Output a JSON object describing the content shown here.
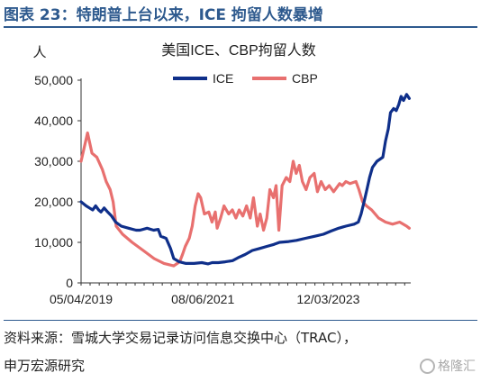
{
  "figure": {
    "title": "图表 23：特朗普上台以来，ICE 拘留人数暴增",
    "source": "资料来源：雪城大学交易记录访问信息交换中心（TRAC），",
    "publisher": "申万宏源研究",
    "watermark": "格隆汇"
  },
  "colors": {
    "ICE": "#0f2f8a",
    "CBP": "#e8706f",
    "title": "#2e5a8e"
  },
  "chart_data": {
    "type": "line",
    "title": "美国ICE、CBP拘留人数",
    "ylabel": "人",
    "ylim": [
      0,
      50000
    ],
    "yticks": [
      {
        "value": 0,
        "label": "0"
      },
      {
        "value": 10000,
        "label": "10,000"
      },
      {
        "value": 20000,
        "label": "20,000"
      },
      {
        "value": 30000,
        "label": "30,000"
      },
      {
        "value": 40000,
        "label": "40,000"
      },
      {
        "value": 50000,
        "label": "50,000"
      }
    ],
    "xlim": [
      "2019-05-04",
      "2025-06-14"
    ],
    "xticks": [
      {
        "value": "2019-05-04",
        "label": "05/04/2019"
      },
      {
        "value": "2021-08-06",
        "label": "08/06/2021"
      },
      {
        "value": "2023-12-03",
        "label": "12/03/2023"
      }
    ],
    "legend_position": "top-center",
    "series": [
      {
        "name": "ICE",
        "color": "#0f2f8a",
        "points": [
          [
            "2019-05-04",
            20000
          ],
          [
            "2019-06-07",
            19000
          ],
          [
            "2019-06-30",
            18500
          ],
          [
            "2019-07-22",
            18000
          ],
          [
            "2019-08-11",
            19000
          ],
          [
            "2019-08-31",
            18000
          ],
          [
            "2019-09-16",
            17500
          ],
          [
            "2019-10-07",
            18500
          ],
          [
            "2019-10-31",
            17500
          ],
          [
            "2019-11-27",
            16500
          ],
          [
            "2019-12-24",
            15000
          ],
          [
            "2020-01-31",
            14000
          ],
          [
            "2020-03-21",
            13500
          ],
          [
            "2020-05-11",
            13000
          ],
          [
            "2020-06-06",
            13000
          ],
          [
            "2020-07-24",
            13500
          ],
          [
            "2020-09-07",
            13000
          ],
          [
            "2020-10-08",
            13200
          ],
          [
            "2020-10-25",
            11500
          ],
          [
            "2020-11-30",
            11000
          ],
          [
            "2020-12-30",
            8500
          ],
          [
            "2021-01-21",
            6000
          ],
          [
            "2021-02-27",
            5200
          ],
          [
            "2021-04-13",
            4800
          ],
          [
            "2021-06-07",
            4800
          ],
          [
            "2021-07-30",
            5000
          ],
          [
            "2021-09-11",
            4700
          ],
          [
            "2021-10-08",
            5000
          ],
          [
            "2021-11-18",
            5000
          ],
          [
            "2022-01-05",
            5200
          ],
          [
            "2022-02-23",
            5500
          ],
          [
            "2022-04-01",
            6200
          ],
          [
            "2022-05-19",
            7000
          ],
          [
            "2022-07-07",
            8000
          ],
          [
            "2022-08-25",
            8500
          ],
          [
            "2022-10-13",
            9000
          ],
          [
            "2022-11-30",
            9500
          ],
          [
            "2023-01-07",
            10000
          ],
          [
            "2023-03-10",
            10200
          ],
          [
            "2023-05-02",
            10500
          ],
          [
            "2023-07-02",
            11000
          ],
          [
            "2023-09-01",
            11500
          ],
          [
            "2023-10-31",
            12000
          ],
          [
            "2023-12-23",
            12800
          ],
          [
            "2024-02-12",
            13500
          ],
          [
            "2024-04-01",
            14000
          ],
          [
            "2024-05-27",
            14500
          ],
          [
            "2024-06-24",
            15000
          ],
          [
            "2024-07-13",
            17000
          ],
          [
            "2024-08-02",
            20000
          ],
          [
            "2024-08-21",
            23000
          ],
          [
            "2024-09-08",
            26000
          ],
          [
            "2024-09-28",
            28500
          ],
          [
            "2024-10-28",
            30000
          ],
          [
            "2024-12-07",
            31000
          ],
          [
            "2024-12-25",
            35000
          ],
          [
            "2025-01-13",
            38000
          ],
          [
            "2025-01-28",
            42000
          ],
          [
            "2025-02-18",
            43000
          ],
          [
            "2025-03-08",
            42500
          ],
          [
            "2025-03-25",
            44000
          ],
          [
            "2025-04-10",
            46000
          ],
          [
            "2025-04-26",
            45000
          ],
          [
            "2025-05-17",
            46500
          ],
          [
            "2025-06-04",
            45500
          ]
        ]
      },
      {
        "name": "CBP",
        "color": "#e8706f",
        "points": [
          [
            "2019-05-04",
            30000
          ],
          [
            "2019-06-17",
            37000
          ],
          [
            "2019-07-17",
            32000
          ],
          [
            "2019-08-19",
            31000
          ],
          [
            "2019-09-25",
            28000
          ],
          [
            "2019-10-21",
            25000
          ],
          [
            "2019-11-17",
            23000
          ],
          [
            "2019-12-07",
            20000
          ],
          [
            "2019-12-28",
            14000
          ],
          [
            "2020-02-09",
            12000
          ],
          [
            "2020-04-14",
            10000
          ],
          [
            "2020-06-28",
            8000
          ],
          [
            "2020-09-10",
            6000
          ],
          [
            "2020-11-16",
            4800
          ],
          [
            "2021-01-21",
            4200
          ],
          [
            "2021-03-02",
            5200
          ],
          [
            "2021-03-21",
            7000
          ],
          [
            "2021-04-09",
            9000
          ],
          [
            "2021-05-06",
            11000
          ],
          [
            "2021-05-26",
            14000
          ],
          [
            "2021-06-15",
            19000
          ],
          [
            "2021-07-05",
            22000
          ],
          [
            "2021-07-22",
            21000
          ],
          [
            "2021-08-16",
            17000
          ],
          [
            "2021-09-15",
            17500
          ],
          [
            "2021-10-07",
            15000
          ],
          [
            "2021-10-29",
            17500
          ],
          [
            "2021-11-11",
            13500
          ],
          [
            "2021-12-04",
            16000
          ],
          [
            "2021-12-27",
            19000
          ],
          [
            "2022-01-28",
            17000
          ],
          [
            "2022-02-22",
            18000
          ],
          [
            "2022-03-18",
            16000
          ],
          [
            "2022-04-09",
            18000
          ],
          [
            "2022-05-04",
            16500
          ],
          [
            "2022-05-29",
            19000
          ],
          [
            "2022-06-23",
            16000
          ],
          [
            "2022-07-15",
            21000
          ],
          [
            "2022-08-10",
            14000
          ],
          [
            "2022-08-29",
            17000
          ],
          [
            "2022-09-21",
            13000
          ],
          [
            "2022-10-13",
            16000
          ],
          [
            "2022-11-03",
            23000
          ],
          [
            "2022-11-27",
            21000
          ],
          [
            "2022-12-15",
            24000
          ],
          [
            "2023-01-03",
            13000
          ],
          [
            "2023-01-25",
            24000
          ],
          [
            "2023-02-22",
            26000
          ],
          [
            "2023-03-18",
            25000
          ],
          [
            "2023-04-10",
            30000
          ],
          [
            "2023-04-30",
            27000
          ],
          [
            "2023-05-21",
            29000
          ],
          [
            "2023-06-11",
            25000
          ],
          [
            "2023-07-06",
            23000
          ],
          [
            "2023-08-01",
            26000
          ],
          [
            "2023-08-30",
            27000
          ],
          [
            "2023-09-21",
            22500
          ],
          [
            "2023-10-16",
            25000
          ],
          [
            "2023-11-13",
            23000
          ],
          [
            "2023-12-10",
            24000
          ],
          [
            "2024-01-09",
            22500
          ],
          [
            "2024-02-18",
            24500
          ],
          [
            "2024-03-07",
            24000
          ],
          [
            "2024-04-01",
            25000
          ],
          [
            "2024-04-29",
            24500
          ],
          [
            "2024-06-08",
            25000
          ],
          [
            "2024-06-28",
            23000
          ],
          [
            "2024-07-23",
            20000
          ],
          [
            "2024-08-18",
            19000
          ],
          [
            "2024-09-22",
            18000
          ],
          [
            "2024-11-08",
            16000
          ],
          [
            "2024-12-25",
            15000
          ],
          [
            "2025-02-11",
            14500
          ],
          [
            "2025-03-31",
            15000
          ],
          [
            "2025-05-17",
            14000
          ],
          [
            "2025-06-04",
            13500
          ]
        ]
      }
    ]
  }
}
